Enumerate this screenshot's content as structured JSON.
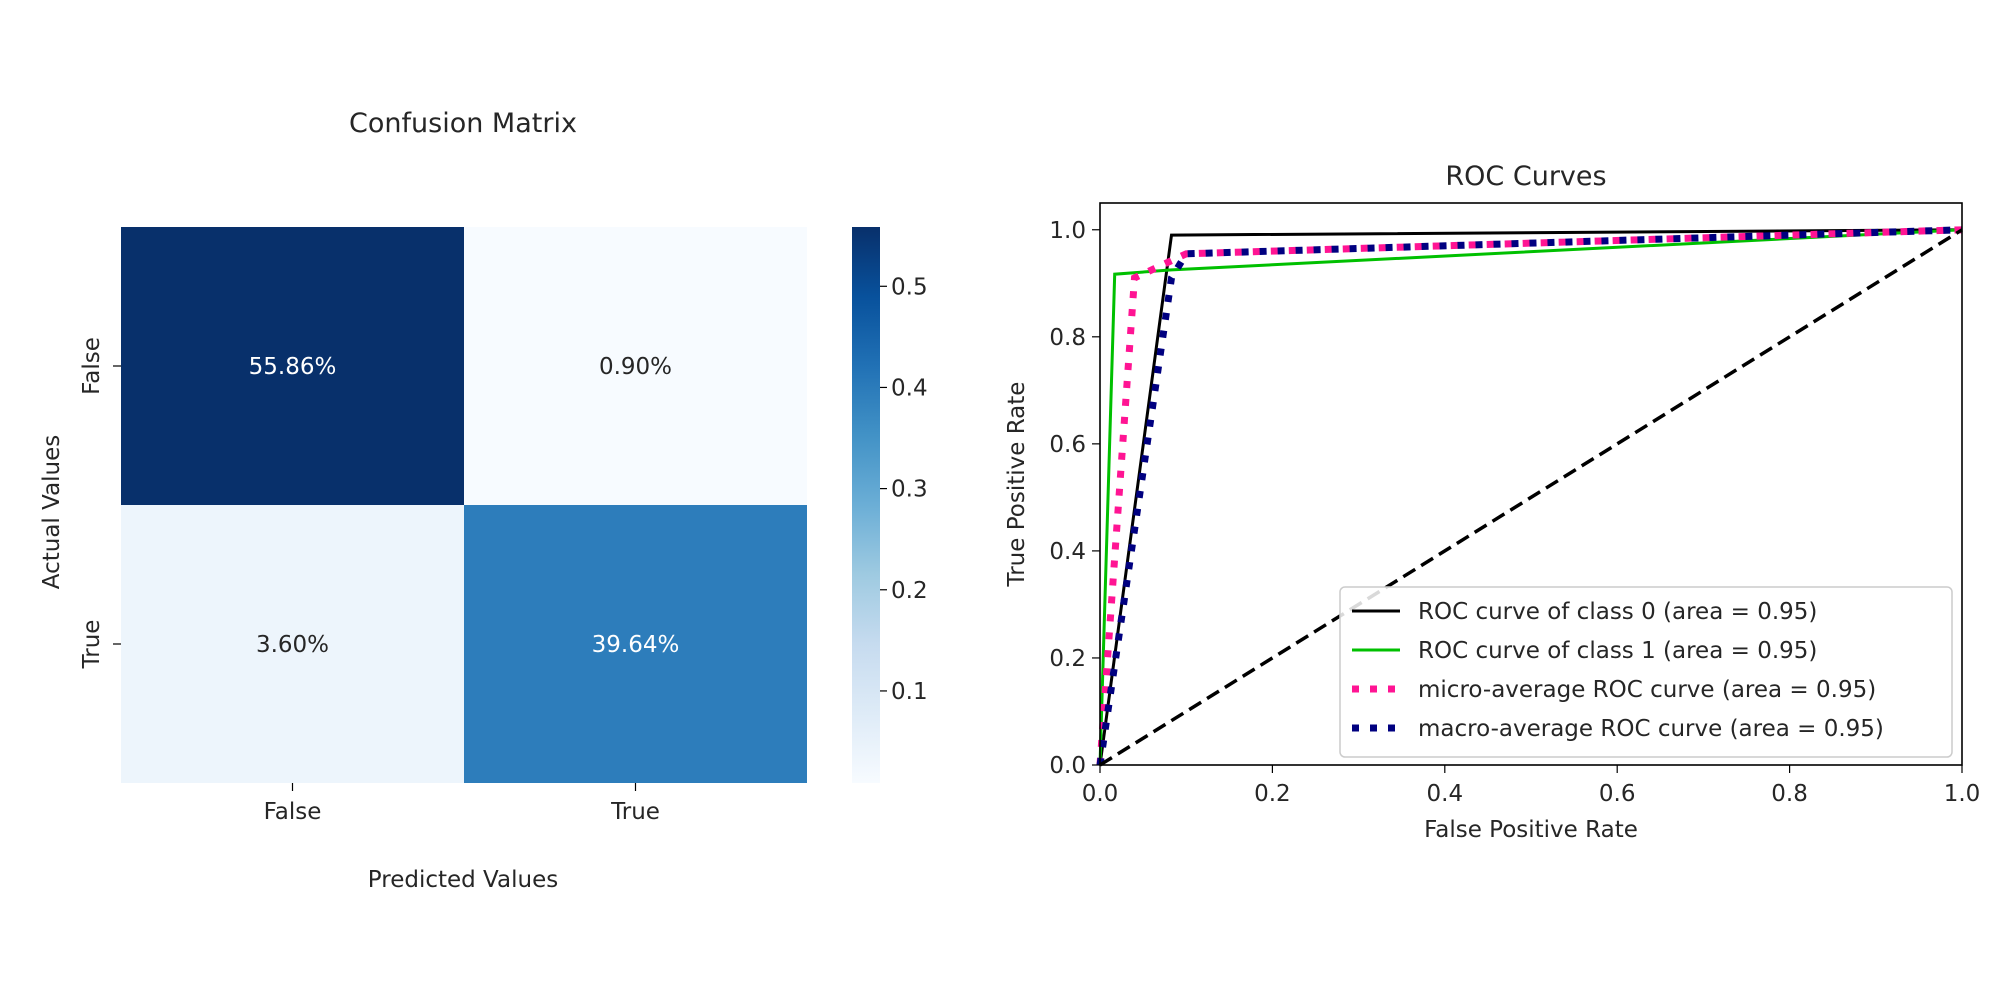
{
  "chart_data": [
    {
      "type": "heatmap",
      "title": "Confusion Matrix",
      "xlabel": "Predicted Values",
      "ylabel": "Actual Values",
      "x_categories": [
        "False",
        "True"
      ],
      "y_categories": [
        "False",
        "True"
      ],
      "values": [
        [
          0.5586,
          0.009
        ],
        [
          0.036,
          0.3964
        ]
      ],
      "cell_labels": [
        [
          "55.86%",
          "0.90%"
        ],
        [
          "3.60%",
          "39.64%"
        ]
      ],
      "colormap": "Blues",
      "colorbar": {
        "range": [
          0.009,
          0.5586
        ],
        "ticks": [
          "0.1",
          "0.2",
          "0.3",
          "0.4",
          "0.5"
        ],
        "tick_values": [
          0.1,
          0.2,
          0.3,
          0.4,
          0.5
        ]
      }
    },
    {
      "type": "line",
      "title": "ROC Curves",
      "xlabel": "False Positive Rate",
      "ylabel": "True Positive Rate",
      "xlim": [
        0.0,
        1.0
      ],
      "ylim": [
        0.0,
        1.05
      ],
      "xticks": [
        "0.0",
        "0.2",
        "0.4",
        "0.6",
        "0.8",
        "1.0"
      ],
      "yticks": [
        "0.0",
        "0.2",
        "0.4",
        "0.6",
        "0.8",
        "1.0"
      ],
      "grid": false,
      "legend_placement": "lower-right",
      "series": [
        {
          "name": "ROC curve of class 0 (area = 0.95)",
          "color": "#000000",
          "style": "solid",
          "x": [
            0.0,
            0.0,
            0.083,
            1.0
          ],
          "y": [
            0.0,
            0.0,
            0.99,
            1.0
          ]
        },
        {
          "name": "ROC curve of class 1 (area = 0.95)",
          "color": "#00c000",
          "style": "solid",
          "x": [
            0.0,
            0.017,
            0.083,
            1.0
          ],
          "y": [
            0.0,
            0.917,
            0.925,
            1.0
          ]
        },
        {
          "name": "micro-average ROC curve (area = 0.95)",
          "color": "#ff1493",
          "style": "dotted",
          "x": [
            0.0,
            0.04,
            0.1,
            1.0
          ],
          "y": [
            0.0,
            0.91,
            0.955,
            1.0
          ]
        },
        {
          "name": "macro-average ROC curve (area = 0.95)",
          "color": "#000080",
          "style": "dotted",
          "x": [
            0.0,
            0.083,
            0.1,
            1.0
          ],
          "y": [
            0.0,
            0.91,
            0.955,
            1.0
          ]
        },
        {
          "name": "",
          "color": "#000000",
          "style": "dashed",
          "x": [
            0.0,
            1.0
          ],
          "y": [
            0.0,
            1.0
          ]
        }
      ]
    }
  ]
}
